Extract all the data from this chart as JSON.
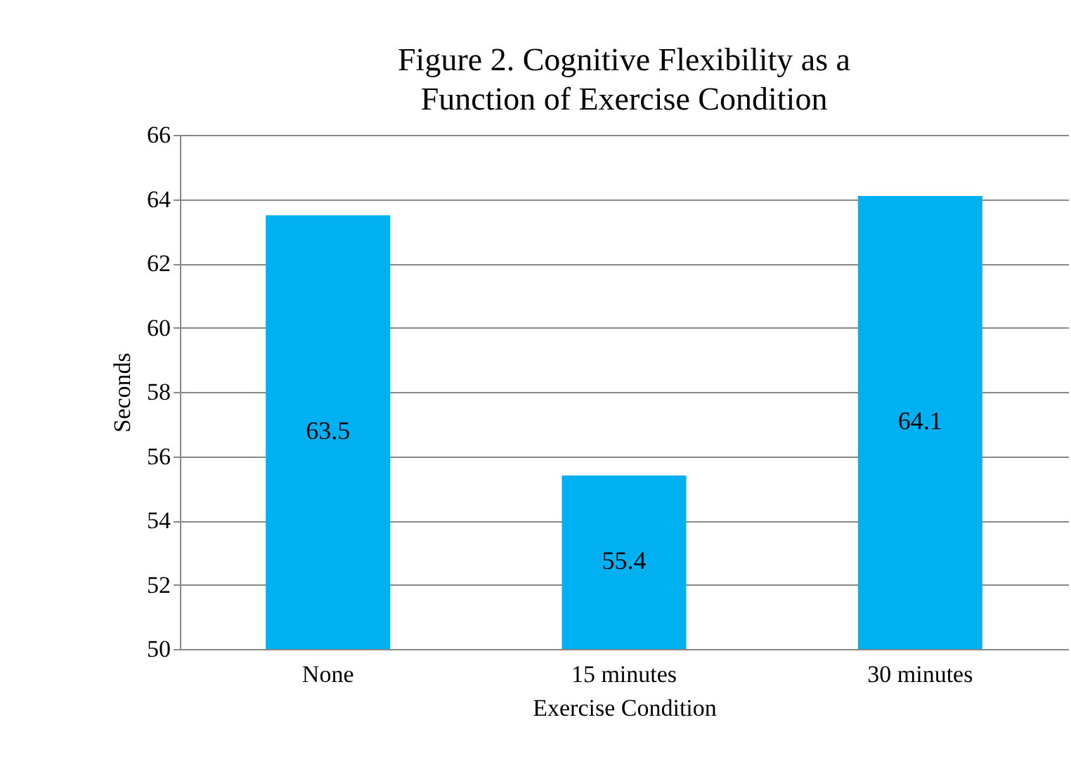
{
  "chart_data": {
    "type": "bar",
    "title": "Figure 2. Cognitive Flexibility as a Function of Exercise Condition",
    "xlabel": "Exercise Condition",
    "ylabel": "Seconds",
    "categories": [
      "None",
      "15 minutes",
      "30 minutes"
    ],
    "values": [
      63.5,
      55.4,
      64.1
    ],
    "color": "#00b0f0",
    "ylim": [
      50,
      66
    ],
    "yticks": [
      50,
      52,
      54,
      56,
      58,
      60,
      62,
      64,
      66
    ],
    "grid": "y",
    "data_labels": true
  }
}
